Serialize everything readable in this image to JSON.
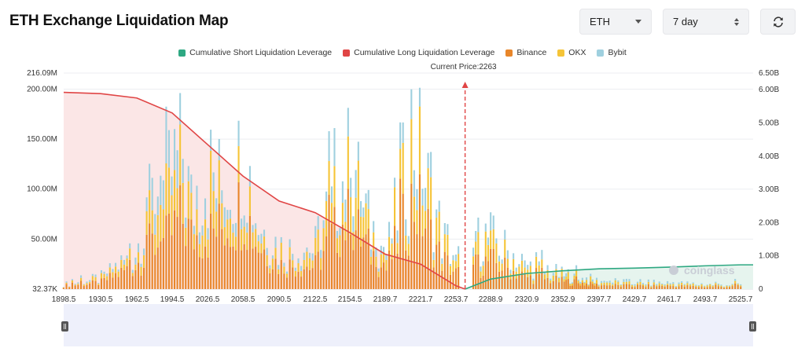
{
  "header": {
    "title": "ETH Exchange Liquidation Map",
    "coin_select": "ETH",
    "range_select": "7 day",
    "refresh_icon": "refresh-icon"
  },
  "colors": {
    "short": "#2ea882",
    "long": "#e04545",
    "binance": "#e8862a",
    "okx": "#f5c437",
    "bybit": "#9fd0df",
    "long_fill": "#fbe6e6",
    "short_fill": "#e6f4ee"
  },
  "chart_data": {
    "type": "bar",
    "current_price_label": "Current Price:2263",
    "current_price": 2263,
    "x_ticks": [
      "1898.5",
      "1930.5",
      "1962.5",
      "1994.5",
      "2026.5",
      "2058.5",
      "2090.5",
      "2122.5",
      "2154.5",
      "2189.7",
      "2221.7",
      "2253.7",
      "2288.9",
      "2320.9",
      "2352.9",
      "2397.7",
      "2429.7",
      "2461.7",
      "2493.7",
      "2525.7"
    ],
    "y_left_ticks": [
      "216.09M",
      "200.00M",
      "150.00M",
      "100.00M",
      "50.00M",
      "32.37K"
    ],
    "y_right_ticks": [
      "6.50B",
      "6.00B",
      "5.00B",
      "4.00B",
      "3.00B",
      "2.00B",
      "1.00B",
      "0"
    ],
    "y_left_range": [
      0,
      216.09
    ],
    "y_right_range": [
      0,
      6.5
    ],
    "legend": [
      {
        "name": "Cumulative Short Liquidation Leverage",
        "color": "#2ea882"
      },
      {
        "name": "Cumulative Long Liquidation Leverage",
        "color": "#e04545"
      },
      {
        "name": "Binance",
        "color": "#e8862a"
      },
      {
        "name": "OKX",
        "color": "#f5c437"
      },
      {
        "name": "Bybit",
        "color": "#9fd0df"
      }
    ],
    "series_exchange_peaks_millions": [
      {
        "price": 1898.5,
        "binance": 4,
        "okx": 1,
        "bybit": 1
      },
      {
        "price": 1930.5,
        "binance": 8,
        "okx": 3,
        "bybit": 2
      },
      {
        "price": 1962.5,
        "binance": 30,
        "okx": 12,
        "bybit": 8
      },
      {
        "price": 1975,
        "binance": 55,
        "okx": 30,
        "bybit": 22
      },
      {
        "price": 1990,
        "binance": 60,
        "okx": 35,
        "bybit": 35
      },
      {
        "price": 2003,
        "binance": 90,
        "okx": 45,
        "bybit": 35
      },
      {
        "price": 2012,
        "binance": 65,
        "okx": 35,
        "bybit": 22
      },
      {
        "price": 2030,
        "binance": 70,
        "okx": 45,
        "bybit": 28
      },
      {
        "price": 2050,
        "binance": 85,
        "okx": 45,
        "bybit": 30
      },
      {
        "price": 2058.5,
        "binance": 110,
        "okx": 55,
        "bybit": 35
      },
      {
        "price": 2070,
        "binance": 60,
        "okx": 25,
        "bybit": 15
      },
      {
        "price": 2090.5,
        "binance": 30,
        "okx": 15,
        "bybit": 10
      },
      {
        "price": 2122.5,
        "binance": 28,
        "okx": 14,
        "bybit": 8
      },
      {
        "price": 2145,
        "binance": 80,
        "okx": 40,
        "bybit": 28
      },
      {
        "price": 2154.5,
        "binance": 85,
        "okx": 45,
        "bybit": 30
      },
      {
        "price": 2189.7,
        "binance": 20,
        "okx": 8,
        "bybit": 5
      },
      {
        "price": 2215,
        "binance": 110,
        "okx": 50,
        "bybit": 35
      },
      {
        "price": 2221.7,
        "binance": 95,
        "okx": 45,
        "bybit": 30
      },
      {
        "price": 2240,
        "binance": 40,
        "okx": 20,
        "bybit": 10
      },
      {
        "price": 2253.7,
        "binance": 20,
        "okx": 10,
        "bybit": 5
      },
      {
        "price": 2288.9,
        "binance": 35,
        "okx": 20,
        "bybit": 12
      },
      {
        "price": 2320.9,
        "binance": 15,
        "okx": 8,
        "bybit": 5
      },
      {
        "price": 2352.9,
        "binance": 10,
        "okx": 5,
        "bybit": 3
      },
      {
        "price": 2397.7,
        "binance": 5,
        "okx": 3,
        "bybit": 2
      },
      {
        "price": 2429.7,
        "binance": 4,
        "okx": 2,
        "bybit": 2
      },
      {
        "price": 2461.7,
        "binance": 4,
        "okx": 2,
        "bybit": 2
      },
      {
        "price": 2493.7,
        "binance": 3,
        "okx": 2,
        "bybit": 1
      },
      {
        "price": 2525.7,
        "binance": 3,
        "okx": 1,
        "bybit": 1
      }
    ],
    "cumulative_long_billions": [
      {
        "price": 1898.5,
        "value": 5.92
      },
      {
        "price": 1930.5,
        "value": 5.88
      },
      {
        "price": 1962.5,
        "value": 5.75
      },
      {
        "price": 1994.5,
        "value": 5.3
      },
      {
        "price": 2026.5,
        "value": 4.35
      },
      {
        "price": 2058.5,
        "value": 3.4
      },
      {
        "price": 2090.5,
        "value": 2.65
      },
      {
        "price": 2122.5,
        "value": 2.3
      },
      {
        "price": 2154.5,
        "value": 1.7
      },
      {
        "price": 2189.7,
        "value": 1.05
      },
      {
        "price": 2221.7,
        "value": 0.75
      },
      {
        "price": 2253.7,
        "value": 0.1
      },
      {
        "price": 2263,
        "value": 0
      }
    ],
    "cumulative_short_billions": [
      {
        "price": 2263,
        "value": 0
      },
      {
        "price": 2288.9,
        "value": 0.3
      },
      {
        "price": 2320.9,
        "value": 0.47
      },
      {
        "price": 2352.9,
        "value": 0.55
      },
      {
        "price": 2397.7,
        "value": 0.61
      },
      {
        "price": 2429.7,
        "value": 0.63
      },
      {
        "price": 2461.7,
        "value": 0.66
      },
      {
        "price": 2493.7,
        "value": 0.7
      },
      {
        "price": 2525.7,
        "value": 0.73
      }
    ],
    "grid": "horizontal",
    "legend_placement": "top-center"
  },
  "watermark": "coinglass"
}
